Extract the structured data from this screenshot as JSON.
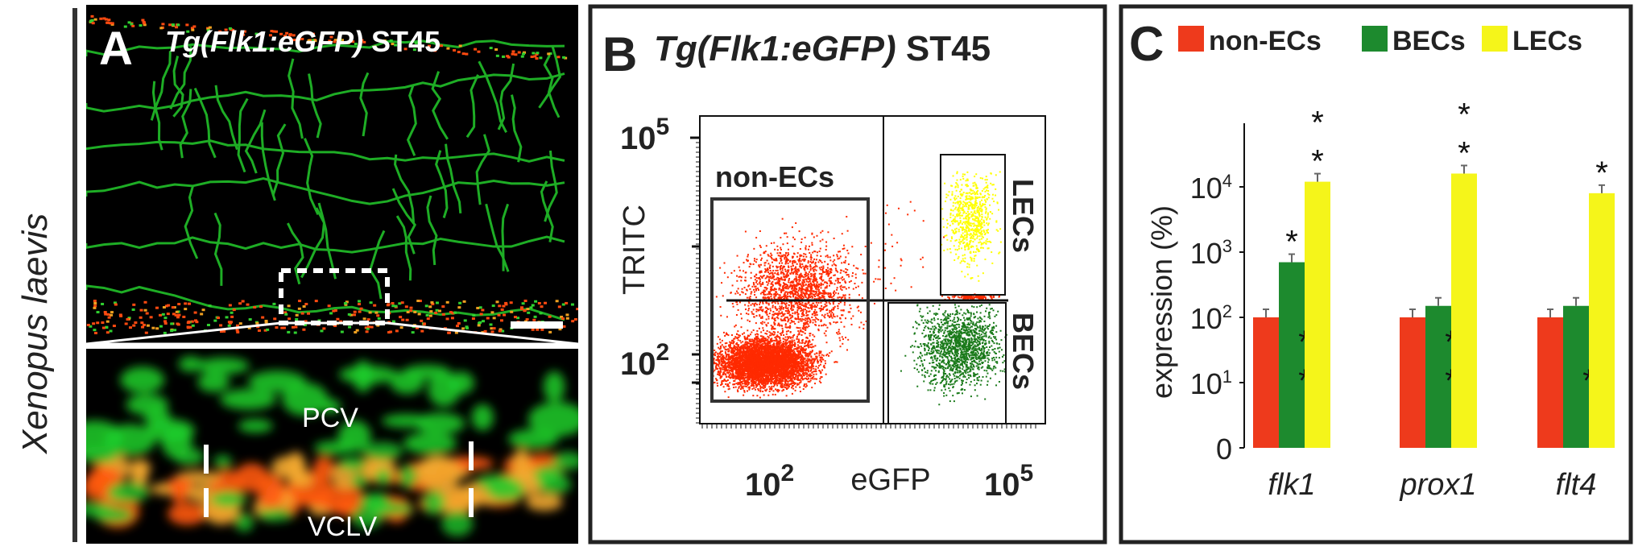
{
  "side_label": "Xenopus laevis",
  "panel_a": {
    "letter": "A",
    "title_italic": "Tg(Flk1:eGFP)",
    "title_stage": "ST45",
    "inset_labels": [
      "PCV",
      "VCLV"
    ]
  },
  "panel_b": {
    "letter": "B",
    "title_italic": "Tg(Flk1:eGFP)",
    "title_stage": "ST45",
    "y_label": "TRITC",
    "x_label": "eGFP",
    "y_ticks": [
      {
        "base": "10",
        "exp": "5"
      },
      {
        "base": "10",
        "exp": "2"
      }
    ],
    "x_ticks": [
      {
        "base": "10",
        "exp": "2"
      },
      {
        "base": "10",
        "exp": "5"
      }
    ],
    "gates": {
      "non_ecs": "non-ECs",
      "lecs": "LECs",
      "becs": "BECs"
    },
    "colors": {
      "non_ecs": "#ff2a00",
      "becs": "#1a7a1a",
      "lecs": "#ffff00"
    }
  },
  "chart_data": {
    "type": "bar",
    "panel_letter": "C",
    "categories": [
      "flk1",
      "prox1",
      "flt4"
    ],
    "series": [
      {
        "name": "non-ECs",
        "color": "#ee3a1c",
        "values": [
          100,
          100,
          100
        ]
      },
      {
        "name": "BECs",
        "color": "#1d8a2e",
        "values": [
          700,
          150,
          150
        ]
      },
      {
        "name": "LECs",
        "color": "#f5f51a",
        "values": [
          12000,
          16000,
          8000
        ]
      }
    ],
    "ylabel": "expression (%)",
    "yscale": "log",
    "ylim": [
      1,
      100000
    ],
    "y_ticks": [
      {
        "value": 1,
        "base": "0",
        "exp": ""
      },
      {
        "value": 10,
        "base": "10",
        "exp": "1"
      },
      {
        "value": 100,
        "base": "10",
        "exp": "2"
      },
      {
        "value": 1000,
        "base": "10",
        "exp": "3"
      },
      {
        "value": 10000,
        "base": "10",
        "exp": "4"
      }
    ],
    "legend_position": "top",
    "significance": [
      {
        "category": "flk1",
        "series": "BECs",
        "above": "*",
        "inside": "**"
      },
      {
        "category": "flk1",
        "series": "LECs",
        "above": "**"
      },
      {
        "category": "prox1",
        "series": "BECs",
        "inside": "**"
      },
      {
        "category": "prox1",
        "series": "LECs",
        "above": "**"
      },
      {
        "category": "flt4",
        "series": "BECs",
        "inside": "*"
      },
      {
        "category": "flt4",
        "series": "LECs",
        "above": "*"
      }
    ]
  }
}
